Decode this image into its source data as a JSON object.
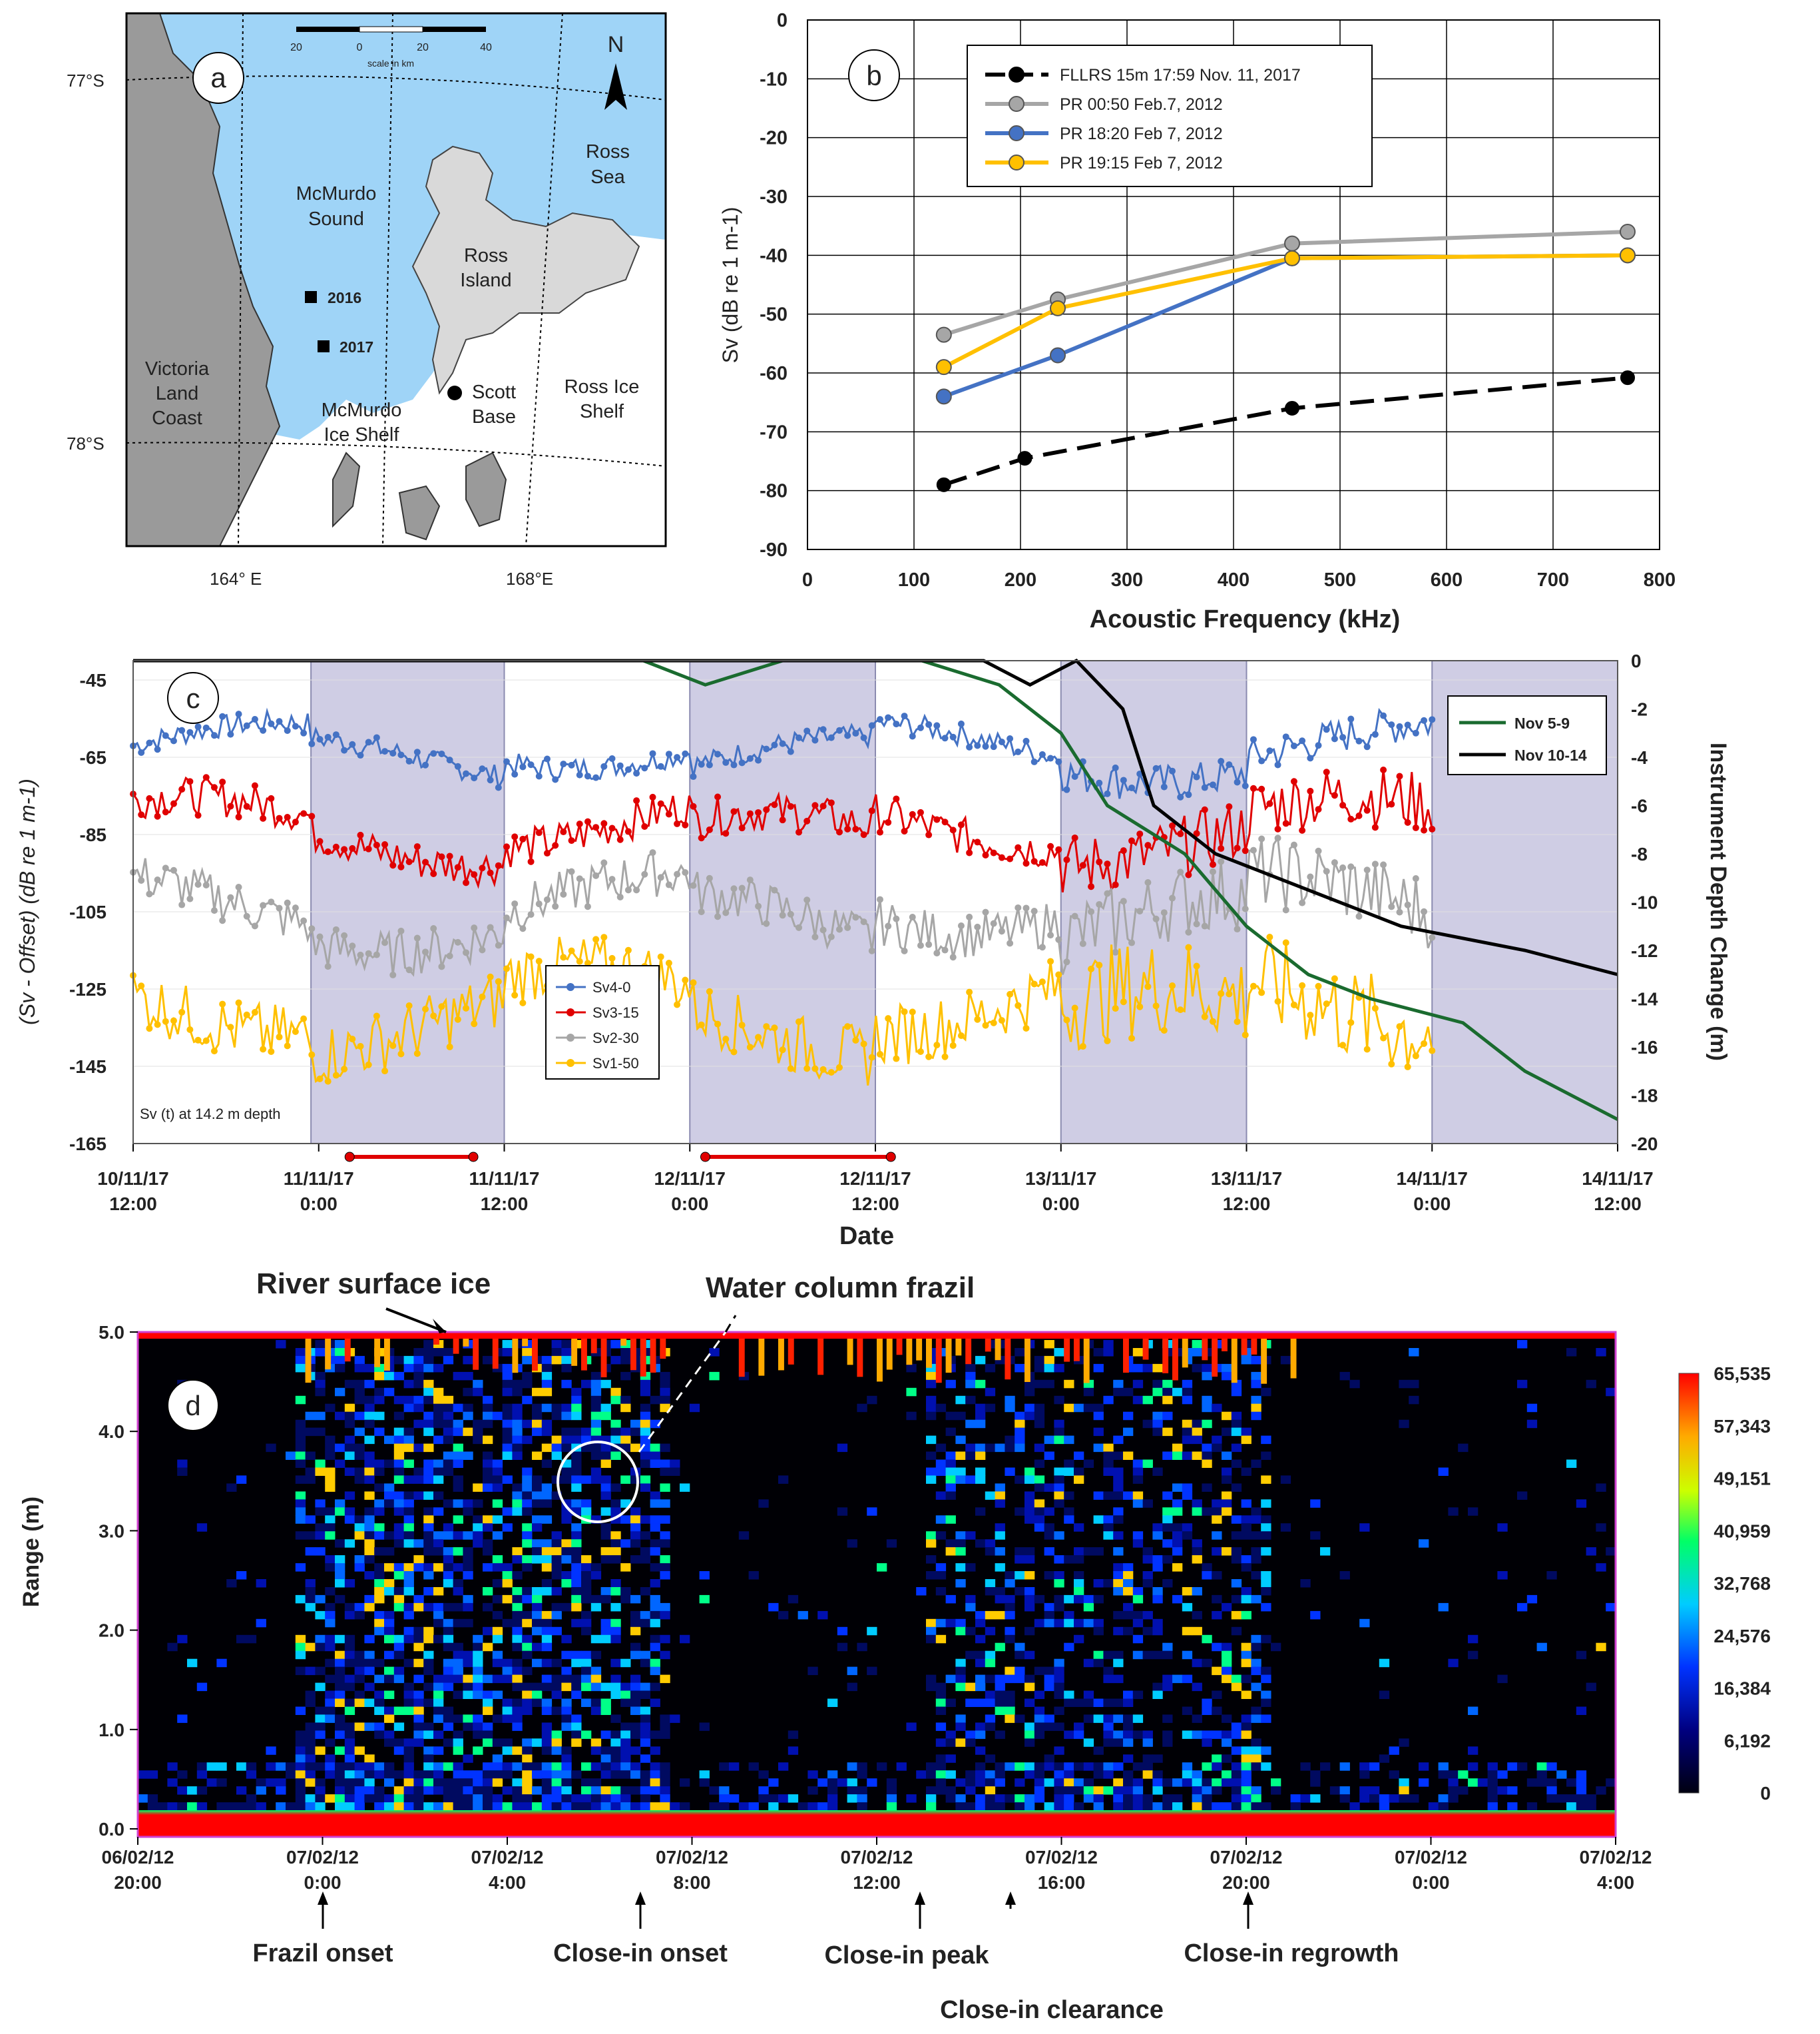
{
  "panel_a": {
    "badge": "a",
    "scale_ticks": [
      "20",
      "0",
      "20",
      "40"
    ],
    "scale_label": "scale in km",
    "north": "N",
    "lat_labels": [
      "77°S",
      "78°S"
    ],
    "lon_labels": [
      "164° E",
      "168°E"
    ],
    "labels": {
      "mcmurdo_sound": [
        "McMurdo",
        "Sound"
      ],
      "ross_island": [
        "Ross",
        "Island"
      ],
      "ross_sea": [
        "Ross",
        "Sea"
      ],
      "victoria_land": [
        "Victoria",
        "Land",
        "Coast"
      ],
      "mcmurdo_ice_shelf": [
        "McMurdo",
        "Ice Shelf"
      ],
      "scott_base": [
        "Scott",
        "Base"
      ],
      "ross_ice_shelf": [
        "Ross Ice",
        "Shelf"
      ],
      "site_2016": "2016",
      "site_2017": "2017"
    },
    "colors": {
      "sea": "#9fd4f7",
      "land": "#a9a9a9",
      "island": "#d9d9d9"
    }
  },
  "chart_data": [
    {
      "panel": "b",
      "type": "line",
      "badge": "b",
      "xlabel": "Acoustic Frequency (kHz)",
      "ylabel": "Sv (dB re 1 m-1)",
      "xlim": [
        0,
        800
      ],
      "ylim": [
        -90,
        0
      ],
      "xticks": [
        "0",
        "100",
        "200",
        "300",
        "400",
        "500",
        "600",
        "700",
        "800"
      ],
      "yticks": [
        "0",
        "-10",
        "-20",
        "-30",
        "-40",
        "-50",
        "-60",
        "-70",
        "-80",
        "-90"
      ],
      "grid": true,
      "legend_position": "top-left",
      "series": [
        {
          "name": "FLLRS 15m 17:59 Nov. 11, 2017",
          "color": "#000000",
          "dashed": true,
          "x": [
            128,
            204,
            455,
            770
          ],
          "y": [
            -79,
            -74.5,
            -66,
            -60.8
          ]
        },
        {
          "name": "PR 00:50 Feb.7, 2012",
          "color": "#a6a6a6",
          "dashed": false,
          "x": [
            128,
            235,
            455,
            770
          ],
          "y": [
            -53.5,
            -47.5,
            -38,
            -36
          ]
        },
        {
          "name": "PR 18:20 Feb 7, 2012",
          "color": "#4472c4",
          "dashed": false,
          "x": [
            128,
            235,
            455,
            770
          ],
          "y": [
            -64,
            -57,
            -40.5,
            -40
          ]
        },
        {
          "name": "PR 19:15 Feb 7, 2012",
          "color": "#ffc000",
          "dashed": false,
          "x": [
            128,
            235,
            455,
            770
          ],
          "y": [
            -59,
            -49,
            -40.5,
            -40
          ]
        }
      ]
    },
    {
      "panel": "c",
      "type": "line",
      "badge": "c",
      "xlabel": "Date",
      "ylabel_left": "(Sv - Offset) (dB re 1 m-1)",
      "ylabel_right": "Instrument Depth Change (m)",
      "ylim_left": [
        -165,
        -40
      ],
      "ylim_right": [
        -20,
        0
      ],
      "xlim_hours": [
        0,
        96
      ],
      "left_ticks": [
        "-45",
        "-65",
        "-85",
        "-105",
        "-125",
        "-145",
        "-165"
      ],
      "right_ticks": [
        "0",
        "-2",
        "-4",
        "-6",
        "-8",
        "-10",
        "-12",
        "-14",
        "-16",
        "-18",
        "-20"
      ],
      "x_tick_labels": [
        [
          "10/11/17",
          "12:00"
        ],
        [
          "11/11/17",
          "0:00"
        ],
        [
          "11/11/17",
          "12:00"
        ],
        [
          "12/11/17",
          "0:00"
        ],
        [
          "12/11/17",
          "12:00"
        ],
        [
          "13/11/17",
          "0:00"
        ],
        [
          "13/11/17",
          "12:00"
        ],
        [
          "14/11/17",
          "0:00"
        ],
        [
          "14/11/17",
          "12:00"
        ]
      ],
      "shaded_hours": [
        [
          11.5,
          24
        ],
        [
          36,
          48
        ],
        [
          60,
          72
        ],
        [
          84,
          96
        ]
      ],
      "red_bars_hours": [
        [
          14,
          22
        ],
        [
          37,
          49
        ]
      ],
      "annotation": "Sv (t) at 14.2 m depth",
      "sv_series": [
        {
          "name": "Sv4-0",
          "color": "#4472c4",
          "base": -62,
          "amp": 6,
          "noise": 3
        },
        {
          "name": "Sv3-15",
          "color": "#e00000",
          "base": -82,
          "amp": 7,
          "noise": 5
        },
        {
          "name": "Sv2-30",
          "color": "#a6a6a6",
          "base": -103,
          "amp": 8,
          "noise": 6
        },
        {
          "name": "Sv1-50",
          "color": "#ffc000",
          "base": -128,
          "amp": 9,
          "noise": 8
        }
      ],
      "depth_series": [
        {
          "name": "Nov 5-9",
          "color": "#1a6b2f",
          "hours": [
            0,
            33,
            37,
            42,
            51,
            56,
            58,
            60,
            63,
            68,
            72,
            76,
            80,
            86,
            90,
            96
          ],
          "depth": [
            0,
            0,
            -1,
            0,
            0,
            -1,
            -2,
            -3,
            -6,
            -8,
            -11,
            -13,
            -14,
            -15,
            -17,
            -19
          ]
        },
        {
          "name": "Nov 10-14",
          "color": "#000000",
          "hours": [
            0,
            55,
            58,
            61,
            64,
            66,
            70,
            74,
            78,
            82,
            86,
            90,
            96
          ],
          "depth": [
            0,
            0,
            -1,
            0,
            -2,
            -6,
            -8,
            -9,
            -10,
            -11,
            -11.5,
            -12,
            -13
          ]
        }
      ]
    },
    {
      "panel": "d",
      "type": "heatmap",
      "badge": "d",
      "ylabel": "Range (m)",
      "yticks": [
        "0.0",
        "1.0",
        "2.0",
        "3.0",
        "4.0",
        "5.0"
      ],
      "x_tick_labels": [
        [
          "06/02/12",
          "20:00"
        ],
        [
          "07/02/12",
          "0:00"
        ],
        [
          "07/02/12",
          "4:00"
        ],
        [
          "07/02/12",
          "8:00"
        ],
        [
          "07/02/12",
          "12:00"
        ],
        [
          "07/02/12",
          "16:00"
        ],
        [
          "07/02/12",
          "20:00"
        ],
        [
          "07/02/12",
          "0:00"
        ],
        [
          "07/02/12",
          "4:00"
        ]
      ],
      "colorbar_ticks": [
        "65,535",
        "57,343",
        "49,151",
        "40,959",
        "32,768",
        "24,576",
        "16,384",
        "6,192",
        "0"
      ],
      "annotations": {
        "surface_ice": "River surface ice",
        "frazil": "Water column frazil",
        "frazil_onset": "Frazil onset",
        "closein_onset": "Close-in onset",
        "closein_peak": "Close-in peak",
        "closein_clearance": "Close-in clearance",
        "closein_regrowth": "Close-in regrowth"
      }
    }
  ]
}
